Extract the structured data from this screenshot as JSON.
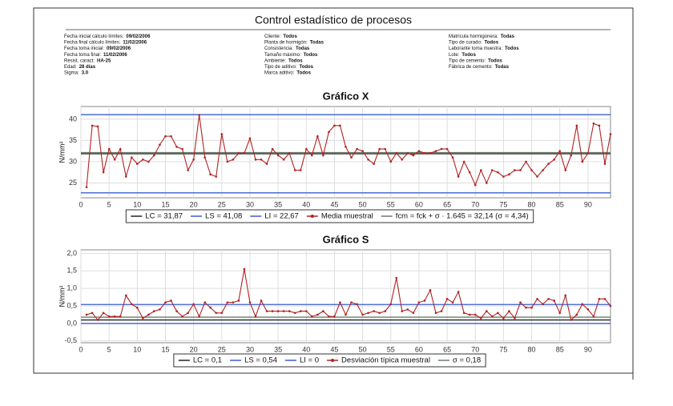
{
  "title": "Control estadístico de procesos",
  "info_columns": [
    [
      {
        "label": "Fecha inicial cálculo límites:",
        "value": "09/02/2006"
      },
      {
        "label": "Fecha final cálculo límites:",
        "value": "11/02/2006"
      },
      {
        "label": "Fecha toma inicial:",
        "value": "09/02/2006"
      },
      {
        "label": "Fecha toma final:",
        "value": "11/02/2006"
      },
      {
        "label": "Resist. caract:",
        "value": "HA-25"
      },
      {
        "label": "Edad:",
        "value": "28 días"
      },
      {
        "label": "Sigma:",
        "value": "3.0"
      }
    ],
    [
      {
        "label": "Cliente:",
        "value": "Todos"
      },
      {
        "label": "Planta de hormigón:",
        "value": "Todas"
      },
      {
        "label": "Consistencia:",
        "value": "Todas"
      },
      {
        "label": "Tamaño máximo:",
        "value": "Todos"
      },
      {
        "label": "Ambiente:",
        "value": "Todos"
      },
      {
        "label": "Tipo de aditivo:",
        "value": "Todos"
      },
      {
        "label": "Marca aditivo:",
        "value": "Todos"
      }
    ],
    [
      {
        "label": "Matrícula hormigonera:",
        "value": "Todas"
      },
      {
        "label": "Tipo de curado:",
        "value": "Todos"
      },
      {
        "label": "Laborante toma muestra:",
        "value": "Todos"
      },
      {
        "label": "Lote:",
        "value": "Todos"
      },
      {
        "label": "Tipo de cemento:",
        "value": "Todos"
      },
      {
        "label": "Fábrica de cemento:",
        "value": "Todas"
      }
    ]
  ],
  "chart_data": [
    {
      "type": "line",
      "title": "Gráfico X",
      "ylabel": "N/mm²",
      "xlim": [
        0,
        94
      ],
      "xticks": [
        0,
        5,
        10,
        15,
        20,
        25,
        30,
        35,
        40,
        45,
        50,
        55,
        60,
        65,
        70,
        75,
        80,
        85,
        90
      ],
      "ylim": [
        21.5,
        43
      ],
      "yticks": [
        25,
        30,
        35,
        40
      ],
      "grid": true,
      "x": [
        1,
        2,
        3,
        4,
        5,
        6,
        7,
        8,
        9,
        10,
        11,
        12,
        13,
        14,
        15,
        16,
        17,
        18,
        19,
        20,
        21,
        22,
        23,
        24,
        25,
        26,
        27,
        28,
        29,
        30,
        31,
        32,
        33,
        34,
        35,
        36,
        37,
        38,
        39,
        40,
        41,
        42,
        43,
        44,
        45,
        46,
        47,
        48,
        49,
        50,
        51,
        52,
        53,
        54,
        55,
        56,
        57,
        58,
        59,
        60,
        61,
        62,
        63,
        64,
        65,
        66,
        67,
        68,
        69,
        70,
        71,
        72,
        73,
        74,
        75,
        76,
        77,
        78,
        79,
        80,
        81,
        82,
        83,
        84,
        85,
        86,
        87,
        88,
        89,
        90,
        91,
        92,
        93,
        94
      ],
      "series": [
        {
          "name": "Media muestral",
          "color": "#b22222",
          "values": [
            24,
            38.5,
            38.3,
            27.5,
            33,
            30.5,
            33,
            26.5,
            31,
            29.5,
            30.5,
            30,
            31.5,
            34,
            36,
            36,
            33.5,
            33,
            28,
            30.5,
            41,
            31,
            27,
            26.5,
            36.5,
            30,
            30.5,
            32,
            32,
            35.5,
            30.5,
            30.5,
            29.5,
            33,
            31.5,
            30.5,
            32,
            28,
            28,
            33,
            31.5,
            36,
            31.5,
            37,
            38.5,
            38.5,
            33.5,
            31,
            33,
            32.5,
            30.5,
            29.5,
            33,
            33,
            30,
            32,
            30.5,
            32,
            31.5,
            32.5,
            32,
            32,
            32.5,
            33,
            33,
            31,
            26.5,
            30,
            27.5,
            24.5,
            28,
            25,
            28,
            27.5,
            26.5,
            27,
            28,
            28,
            30,
            28,
            26.5,
            28,
            29.5,
            30.5,
            32.5,
            28,
            31.5,
            38.5,
            30,
            32,
            39,
            38.5,
            29.5,
            36.5
          ]
        }
      ],
      "lines": [
        {
          "name": "LC = 31,87",
          "value": 31.87,
          "color": "#222222"
        },
        {
          "name": "LS = 41,08",
          "value": 41.08,
          "color": "#3a5fcd"
        },
        {
          "name": "LI = 22,67",
          "value": 22.67,
          "color": "#3a5fcd"
        },
        {
          "name": "fcm = fck + σ · 1.645 = 32,14 (σ = 4,34)",
          "value": 32.14,
          "color": "#6b7b6b"
        }
      ]
    },
    {
      "type": "line",
      "title": "Gráfico S",
      "ylabel": "N/mm²",
      "xlim": [
        0,
        94
      ],
      "xticks": [
        0,
        5,
        10,
        15,
        20,
        25,
        30,
        35,
        40,
        45,
        50,
        55,
        60,
        65,
        70,
        75,
        80,
        85,
        90
      ],
      "ylim": [
        -0.55,
        2.1
      ],
      "yticks": [
        {
          "value": 2,
          "label": "2,0"
        },
        {
          "value": 1.5,
          "label": "1,5"
        },
        {
          "value": 1,
          "label": "1,0"
        },
        {
          "value": 0.5,
          "label": "0,5"
        },
        {
          "value": 0,
          "label": "0,0"
        },
        {
          "value": -0.5,
          "label": "-0,5"
        }
      ],
      "grid": true,
      "x": [
        1,
        2,
        3,
        4,
        5,
        6,
        7,
        8,
        9,
        10,
        11,
        12,
        13,
        14,
        15,
        16,
        17,
        18,
        19,
        20,
        21,
        22,
        23,
        24,
        25,
        26,
        27,
        28,
        29,
        30,
        31,
        32,
        33,
        34,
        35,
        36,
        37,
        38,
        39,
        40,
        41,
        42,
        43,
        44,
        45,
        46,
        47,
        48,
        49,
        50,
        51,
        52,
        53,
        54,
        55,
        56,
        57,
        58,
        59,
        60,
        61,
        62,
        63,
        64,
        65,
        66,
        67,
        68,
        69,
        70,
        71,
        72,
        73,
        74,
        75,
        76,
        77,
        78,
        79,
        80,
        81,
        82,
        83,
        84,
        85,
        86,
        87,
        88,
        89,
        90,
        91,
        92,
        93,
        94
      ],
      "series": [
        {
          "name": "Desviación típica muestral",
          "color": "#b22222",
          "values": [
            0.25,
            0.3,
            0.1,
            0.3,
            0.2,
            0.2,
            0.2,
            0.8,
            0.55,
            0.45,
            0.15,
            0.25,
            0.35,
            0.4,
            0.6,
            0.65,
            0.35,
            0.2,
            0.3,
            0.55,
            0.2,
            0.6,
            0.45,
            0.3,
            0.3,
            0.6,
            0.6,
            0.65,
            1.55,
            0.6,
            0.2,
            0.65,
            0.35,
            0.35,
            0.35,
            0.35,
            0.35,
            0.3,
            0.35,
            0.35,
            0.2,
            0.25,
            0.35,
            0.2,
            0.2,
            0.6,
            0.25,
            0.6,
            0.55,
            0.25,
            0.3,
            0.35,
            0.3,
            0.35,
            0.55,
            1.3,
            0.35,
            0.4,
            0.3,
            0.6,
            0.65,
            0.95,
            0.3,
            0.35,
            0.7,
            0.6,
            0.9,
            0.3,
            0.25,
            0.25,
            0.15,
            0.35,
            0.2,
            0.3,
            0.15,
            0.35,
            0.15,
            0.6,
            0.45,
            0.45,
            0.7,
            0.55,
            0.7,
            0.65,
            0.3,
            0.8,
            0.1,
            0.25,
            0.55,
            0.4,
            0.2,
            0.7,
            0.7,
            0.5
          ]
        }
      ],
      "lines": [
        {
          "name": "LC = 0,1",
          "value": 0.1,
          "color": "#222222"
        },
        {
          "name": "LS = 0,54",
          "value": 0.54,
          "color": "#3a5fcd"
        },
        {
          "name": "LI = 0",
          "value": 0,
          "color": "#3a5fcd"
        },
        {
          "name": "σ = 0,18",
          "value": 0.18,
          "color": "#6b7b6b"
        }
      ]
    }
  ]
}
